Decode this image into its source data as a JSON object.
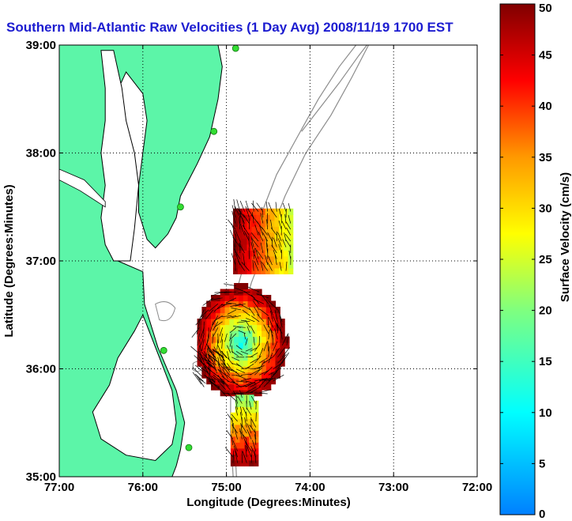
{
  "chart_data": [
    {
      "type": "heatmap",
      "title": "Southern Mid-Atlantic Raw Velocities (1 Day Avg) 2008/11/19 1700 EST",
      "xlabel": "Longitude (Degrees:Minutes)",
      "ylabel": "Latitude (Degrees:Minutes)",
      "x_ticks": [
        "77:00",
        "76:00",
        "75:00",
        "74:00",
        "73:00",
        "72:00"
      ],
      "y_ticks": [
        "39:00",
        "38:00",
        "37:00",
        "36:00",
        "35:00"
      ],
      "xlim": [
        -77,
        -72
      ],
      "ylim": [
        35,
        39
      ],
      "grid": true,
      "land_color": "#5cf5a8",
      "coastline_color": "#000000",
      "bathymetry_color": "#8c8c8c",
      "station_color": "#33dd33",
      "stations": [
        {
          "lon": -74.89,
          "lat": 38.97
        },
        {
          "lon": -75.15,
          "lat": 38.2
        },
        {
          "lon": -75.55,
          "lat": 37.5
        },
        {
          "lon": -75.75,
          "lat": 36.17
        },
        {
          "lon": -75.45,
          "lat": 35.27
        }
      ],
      "patches": [
        {
          "lon": [
            -74.92,
            -74.22
          ],
          "lat": [
            36.88,
            37.48
          ],
          "speed_range": [
            25,
            50
          ],
          "peak_at": "west"
        },
        {
          "lon": [
            -75.35,
            -74.3
          ],
          "lat": [
            35.75,
            36.75
          ],
          "speed_range": [
            8,
            50
          ],
          "center_speed": 10
        },
        {
          "lon": [
            -74.95,
            -74.6
          ],
          "lat": [
            35.1,
            35.75
          ],
          "speed_range": [
            20,
            50
          ],
          "peak_at": "south"
        }
      ]
    },
    {
      "type": "heatmap",
      "title": "",
      "ylabel": "Surface Velocity (cm/s)",
      "ticks": [
        "0",
        "5",
        "10",
        "15",
        "20",
        "25",
        "30",
        "35",
        "40",
        "45",
        "50"
      ],
      "ylim": [
        0,
        50
      ],
      "colormap": "jet"
    }
  ]
}
